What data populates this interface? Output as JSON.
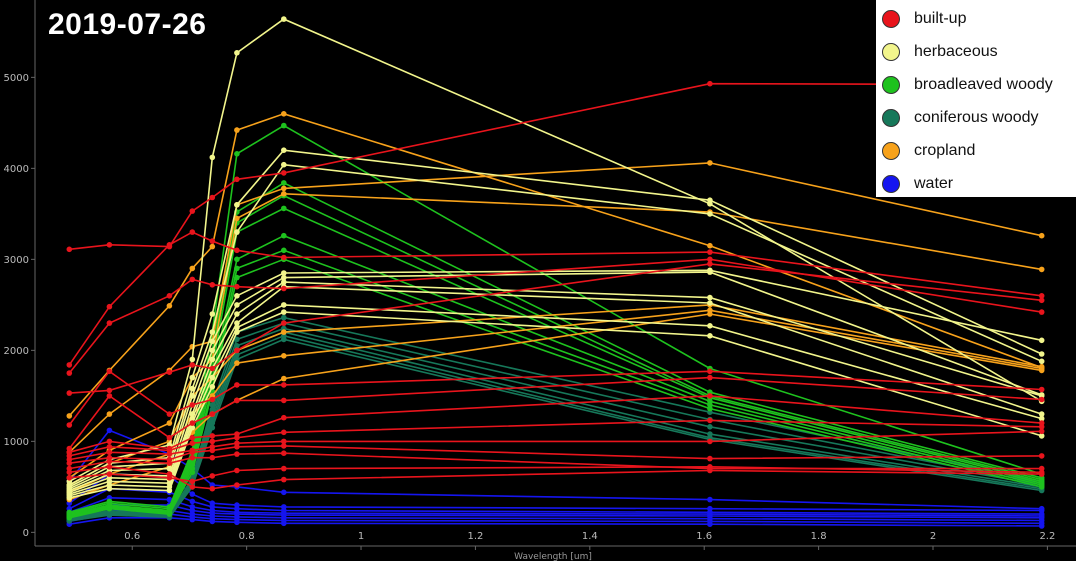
{
  "title": "2019-07-26",
  "chart_data": {
    "type": "line",
    "xlabel": "Wavelength [um]",
    "ylabel": "",
    "xlim": [
      0.43,
      2.25
    ],
    "ylim": [
      -150,
      5850
    ],
    "x_ticks": [
      0.6,
      0.8,
      1,
      1.2,
      1.4,
      1.6,
      1.8,
      2,
      2.2
    ],
    "y_ticks": [
      0,
      1000,
      2000,
      3000,
      4000,
      5000
    ],
    "x": [
      0.49,
      0.56,
      0.665,
      0.705,
      0.74,
      0.783,
      0.865,
      1.61,
      2.19
    ],
    "grid": false,
    "legend_position": "top-right",
    "classes": [
      {
        "name": "built-up",
        "color": "#e8141c"
      },
      {
        "name": "herbaceous",
        "color": "#f2f58c"
      },
      {
        "name": "broadleaved woody",
        "color": "#1ec21e"
      },
      {
        "name": "coniferous woody",
        "color": "#16785a"
      },
      {
        "name": "cropland",
        "color": "#f7a21b"
      },
      {
        "name": "water",
        "color": "#1515f0"
      }
    ],
    "series": [
      {
        "class": "built-up",
        "values": [
          3110,
          3160,
          3140,
          3530,
          3680,
          3880,
          3950,
          4930,
          4920
        ]
      },
      {
        "class": "built-up",
        "values": [
          1840,
          2480,
          3160,
          3300,
          3200,
          3100,
          3020,
          3080,
          2600
        ]
      },
      {
        "class": "built-up",
        "values": [
          1750,
          2300,
          2600,
          2780,
          2720,
          2700,
          2680,
          3000,
          2420
        ]
      },
      {
        "class": "built-up",
        "values": [
          1530,
          1560,
          1760,
          1840,
          1800,
          2000,
          2300,
          2950,
          2550
        ]
      },
      {
        "class": "built-up",
        "values": [
          1180,
          1770,
          1300,
          1400,
          1460,
          1620,
          1620,
          1770,
          1570
        ]
      },
      {
        "class": "built-up",
        "values": [
          920,
          1500,
          1040,
          1200,
          1300,
          1450,
          1450,
          1700,
          1460
        ]
      },
      {
        "class": "built-up",
        "values": [
          880,
          1000,
          920,
          1040,
          1060,
          1080,
          1260,
          1500,
          1200
        ]
      },
      {
        "class": "built-up",
        "values": [
          840,
          940,
          900,
          980,
          1000,
          1040,
          1100,
          1230,
          1160
        ]
      },
      {
        "class": "built-up",
        "values": [
          800,
          880,
          860,
          900,
          940,
          980,
          1000,
          1000,
          1110
        ]
      },
      {
        "class": "built-up",
        "values": [
          760,
          820,
          800,
          880,
          900,
          940,
          950,
          810,
          840
        ]
      },
      {
        "class": "built-up",
        "values": [
          700,
          780,
          760,
          820,
          820,
          860,
          870,
          700,
          700
        ]
      },
      {
        "class": "built-up",
        "values": [
          660,
          720,
          640,
          500,
          480,
          520,
          580,
          680,
          640
        ]
      },
      {
        "class": "built-up",
        "values": [
          600,
          640,
          600,
          560,
          620,
          680,
          700,
          720,
          660
        ]
      },
      {
        "class": "herbaceous",
        "values": [
          560,
          800,
          960,
          1900,
          4120,
          5270,
          5640,
          3610,
          1440
        ]
      },
      {
        "class": "herbaceous",
        "values": [
          520,
          760,
          820,
          1700,
          2400,
          3600,
          4200,
          3650,
          1960
        ]
      },
      {
        "class": "herbaceous",
        "values": [
          500,
          720,
          760,
          1580,
          2200,
          3300,
          4040,
          3500,
          1880
        ]
      },
      {
        "class": "herbaceous",
        "values": [
          480,
          680,
          700,
          1500,
          2100,
          2600,
          2850,
          2880,
          2110
        ]
      },
      {
        "class": "herbaceous",
        "values": [
          460,
          640,
          620,
          1400,
          2000,
          2500,
          2800,
          2860,
          1510
        ]
      },
      {
        "class": "herbaceous",
        "values": [
          440,
          600,
          580,
          1300,
          1900,
          2400,
          2750,
          2580,
          1500
        ]
      },
      {
        "class": "herbaceous",
        "values": [
          420,
          560,
          540,
          1250,
          1800,
          2300,
          2700,
          2520,
          1300
        ]
      },
      {
        "class": "herbaceous",
        "values": [
          400,
          520,
          500,
          1200,
          1700,
          2250,
          2500,
          2270,
          1250
        ]
      },
      {
        "class": "herbaceous",
        "values": [
          380,
          480,
          460,
          1150,
          1600,
          2200,
          2420,
          2160,
          1060
        ]
      },
      {
        "class": "broadleaved woody",
        "values": [
          220,
          340,
          280,
          900,
          2200,
          4160,
          4470,
          1800,
          640
        ]
      },
      {
        "class": "broadleaved woody",
        "values": [
          210,
          320,
          260,
          860,
          2000,
          3520,
          3840,
          1540,
          600
        ]
      },
      {
        "class": "broadleaved woody",
        "values": [
          200,
          300,
          240,
          820,
          1900,
          3400,
          3700,
          1500,
          580
        ]
      },
      {
        "class": "broadleaved woody",
        "values": [
          190,
          290,
          230,
          780,
          1800,
          3300,
          3560,
          1480,
          560
        ]
      },
      {
        "class": "broadleaved woody",
        "values": [
          180,
          280,
          220,
          740,
          1700,
          3000,
          3260,
          1440,
          540
        ]
      },
      {
        "class": "broadleaved woody",
        "values": [
          170,
          270,
          210,
          700,
          1600,
          2900,
          3100,
          1400,
          520
        ]
      },
      {
        "class": "broadleaved woody",
        "values": [
          160,
          260,
          200,
          660,
          1550,
          2800,
          3000,
          1360,
          500
        ]
      },
      {
        "class": "coniferous woody",
        "values": [
          150,
          240,
          190,
          600,
          1400,
          2200,
          2360,
          1320,
          560
        ]
      },
      {
        "class": "coniferous woody",
        "values": [
          145,
          230,
          185,
          580,
          1350,
          2120,
          2300,
          1240,
          540
        ]
      },
      {
        "class": "coniferous woody",
        "values": [
          140,
          220,
          180,
          560,
          1300,
          2050,
          2240,
          1160,
          520
        ]
      },
      {
        "class": "coniferous woody",
        "values": [
          135,
          210,
          175,
          540,
          1250,
          2000,
          2200,
          1080,
          500
        ]
      },
      {
        "class": "coniferous woody",
        "values": [
          130,
          200,
          170,
          520,
          1200,
          1950,
          2160,
          1040,
          480
        ]
      },
      {
        "class": "coniferous woody",
        "values": [
          125,
          190,
          165,
          500,
          1150,
          1900,
          2120,
          1020,
          460
        ]
      },
      {
        "class": "cropland",
        "values": [
          1280,
          1780,
          2490,
          2900,
          3140,
          4420,
          4600,
          3150,
          1810
        ]
      },
      {
        "class": "cropland",
        "values": [
          880,
          1300,
          1780,
          2040,
          2100,
          3600,
          3780,
          4060,
          3260
        ]
      },
      {
        "class": "cropland",
        "values": [
          600,
          900,
          1200,
          1700,
          1900,
          3450,
          3720,
          3520,
          2890
        ]
      },
      {
        "class": "cropland",
        "values": [
          520,
          760,
          1000,
          1500,
          1700,
          2000,
          2200,
          2500,
          1820
        ]
      },
      {
        "class": "cropland",
        "values": [
          440,
          640,
          860,
          1300,
          1500,
          1860,
          1940,
          2440,
          1800
        ]
      },
      {
        "class": "cropland",
        "values": [
          360,
          520,
          720,
          1100,
          1300,
          1450,
          1690,
          2400,
          1780
        ]
      },
      {
        "class": "water",
        "values": [
          560,
          1120,
          860,
          700,
          520,
          500,
          440,
          360,
          260
        ]
      },
      {
        "class": "water",
        "values": [
          320,
          640,
          620,
          420,
          320,
          300,
          280,
          260,
          240
        ]
      },
      {
        "class": "water",
        "values": [
          260,
          480,
          440,
          340,
          280,
          260,
          240,
          220,
          200
        ]
      },
      {
        "class": "water",
        "values": [
          220,
          380,
          360,
          280,
          240,
          220,
          210,
          200,
          180
        ]
      },
      {
        "class": "water",
        "values": [
          180,
          300,
          300,
          240,
          210,
          200,
          190,
          180,
          160
        ]
      },
      {
        "class": "water",
        "values": [
          150,
          240,
          240,
          200,
          180,
          170,
          160,
          150,
          130
        ]
      },
      {
        "class": "water",
        "values": [
          120,
          200,
          200,
          170,
          150,
          140,
          130,
          120,
          100
        ]
      },
      {
        "class": "water",
        "values": [
          90,
          160,
          160,
          140,
          120,
          110,
          100,
          90,
          70
        ]
      }
    ]
  }
}
